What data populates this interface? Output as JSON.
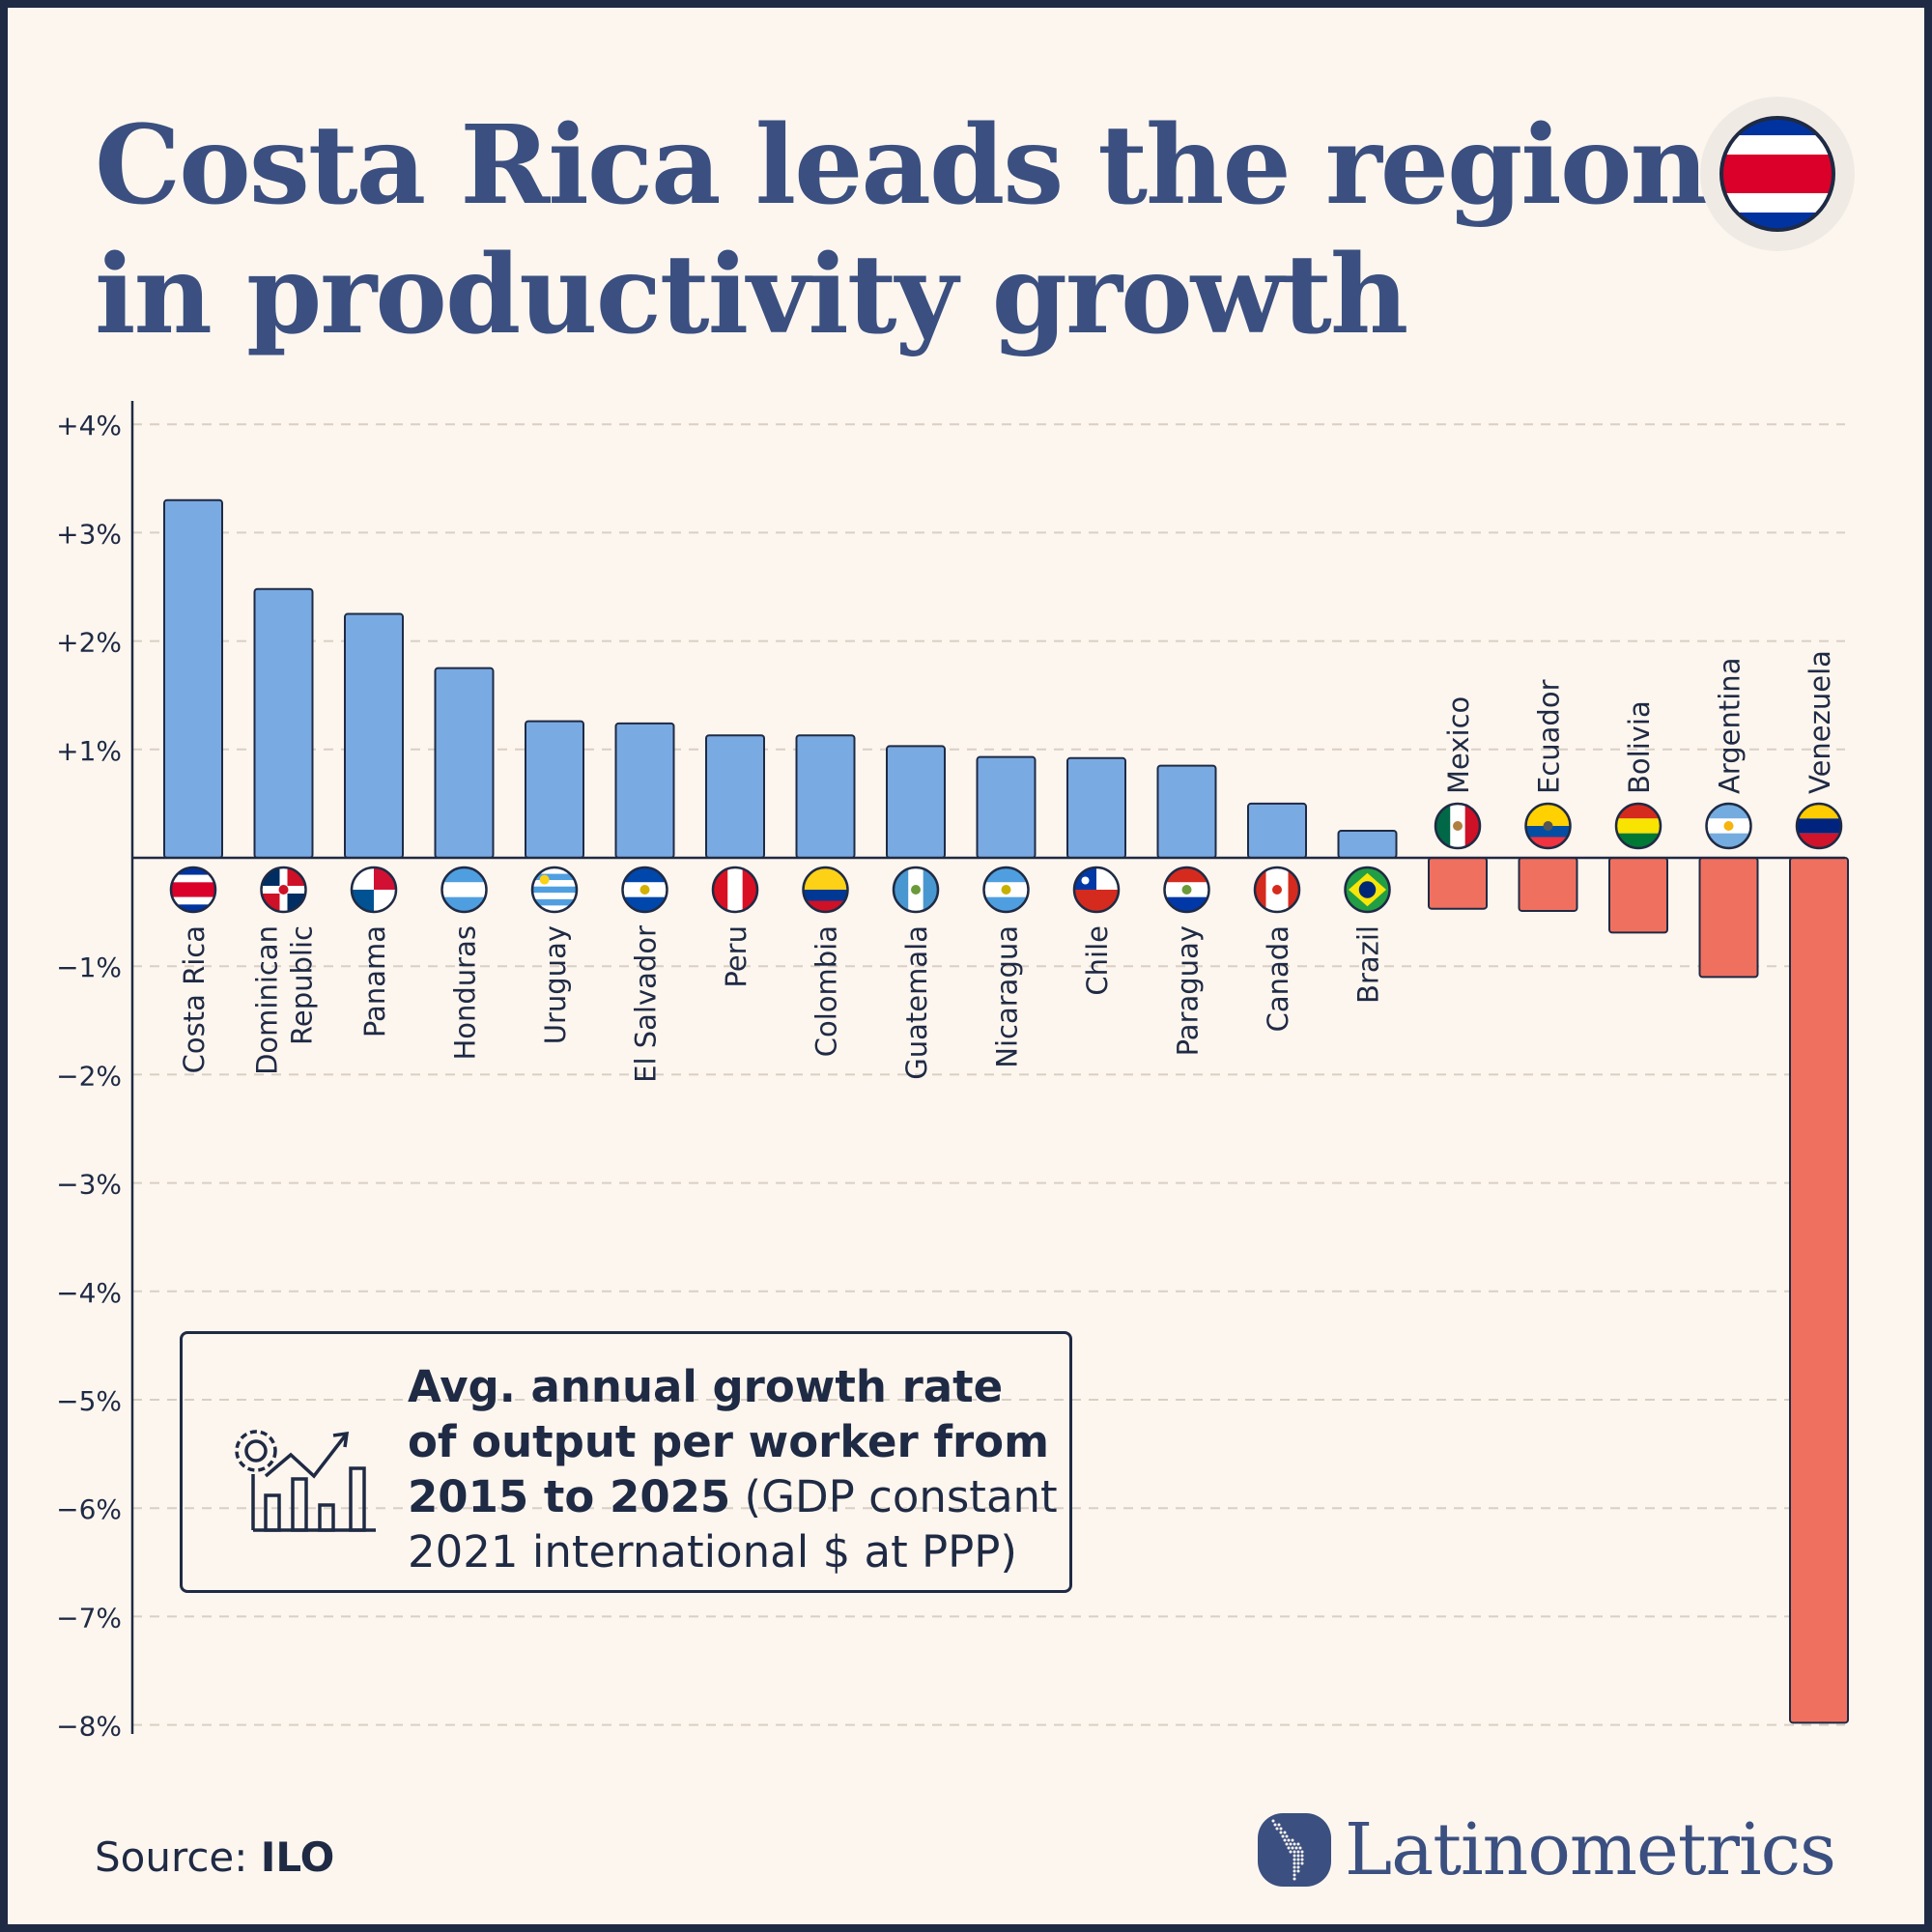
{
  "title": "Costa Rica leads the region in productivity growth",
  "title_lines": [
    "Costa Rica leads the region",
    "in productivity growth"
  ],
  "header_flag_icon": "costa-rica-flag-icon",
  "chart_data": {
    "type": "bar",
    "title": "Costa Rica leads the region in productivity growth",
    "xlabel": "",
    "ylabel": "",
    "ylim": [
      -8,
      4
    ],
    "yticks": [
      4,
      3,
      2,
      1,
      -1,
      -2,
      -3,
      -4,
      -5,
      -6,
      -7,
      -8
    ],
    "ytick_labels": [
      "+4%",
      "+3%",
      "+2%",
      "+1%",
      "−1%",
      "−2%",
      "−3%",
      "−4%",
      "−5%",
      "−6%",
      "−7%",
      "−8%"
    ],
    "grid": true,
    "categories": [
      "Costa Rica",
      "Dominican Republic",
      "Panama",
      "Honduras",
      "Uruguay",
      "El Salvador",
      "Peru",
      "Colombia",
      "Guatemala",
      "Nicaragua",
      "Chile",
      "Paraguay",
      "Canada",
      "Brazil",
      "Mexico",
      "Ecuador",
      "Bolivia",
      "Argentina",
      "Venezuela"
    ],
    "label_lines": [
      [
        "Costa Rica"
      ],
      [
        "Dominican",
        "Republic"
      ],
      [
        "Panama"
      ],
      [
        "Honduras"
      ],
      [
        "Uruguay"
      ],
      [
        "El Salvador"
      ],
      [
        "Peru"
      ],
      [
        "Colombia"
      ],
      [
        "Guatemala"
      ],
      [
        "Nicaragua"
      ],
      [
        "Chile"
      ],
      [
        "Paraguay"
      ],
      [
        "Canada"
      ],
      [
        "Brazil"
      ],
      [
        "Mexico"
      ],
      [
        "Ecuador"
      ],
      [
        "Bolivia"
      ],
      [
        "Argentina"
      ],
      [
        "Venezuela"
      ]
    ],
    "values": [
      3.3,
      2.48,
      2.25,
      1.75,
      1.26,
      1.24,
      1.13,
      1.13,
      1.03,
      0.93,
      0.92,
      0.85,
      0.5,
      0.25,
      -0.47,
      -0.49,
      -0.69,
      -1.1,
      -7.98
    ],
    "colors": {
      "positive": "#7aaae2",
      "negative": "#f07060",
      "outline": "#1f2a44",
      "grid": "#d9cfc4"
    }
  },
  "legend": {
    "icon": "gear-growth-chart-icon",
    "bold_text": "Avg. annual growth rate of output per worker from 2015 to 2025",
    "regular_text": " (GDP constant 2021 international $ at PPP)"
  },
  "source": {
    "label": "Source: ",
    "value": "ILO"
  },
  "brand": {
    "name": "Latinometrics",
    "icon": "latin-america-map-icon"
  }
}
